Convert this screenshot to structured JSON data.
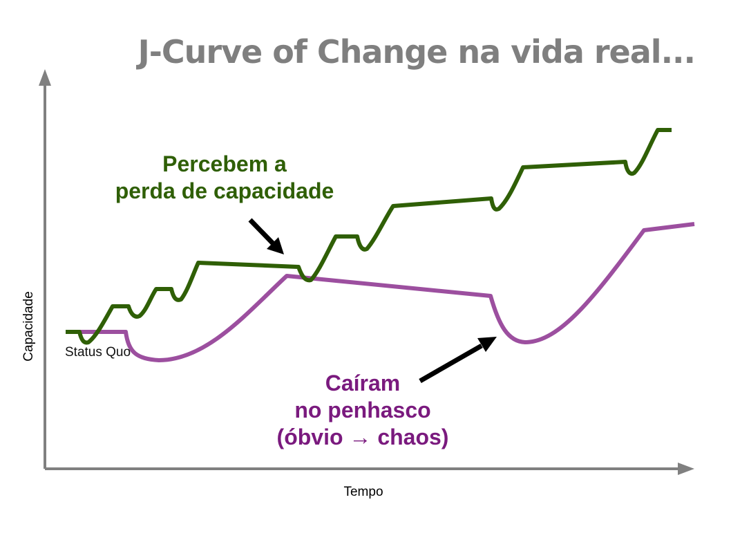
{
  "title": "J-Curve of Change na vida real...",
  "colors": {
    "green": "#2f5f06",
    "purple": "#9c4f9f",
    "purple_text": "#7a1a7e",
    "axis": "#808080",
    "title": "#7f7f7f",
    "arrow": "#000000"
  },
  "axes": {
    "y_label": "Capacidade",
    "x_label": "Tempo"
  },
  "status_quo_label": "Status Quo",
  "annotations": {
    "green": [
      "Percebem a",
      "perda de capacidade"
    ],
    "purple": [
      "Caíram",
      "no penhasco",
      "(óbvio → chaos)"
    ]
  }
}
